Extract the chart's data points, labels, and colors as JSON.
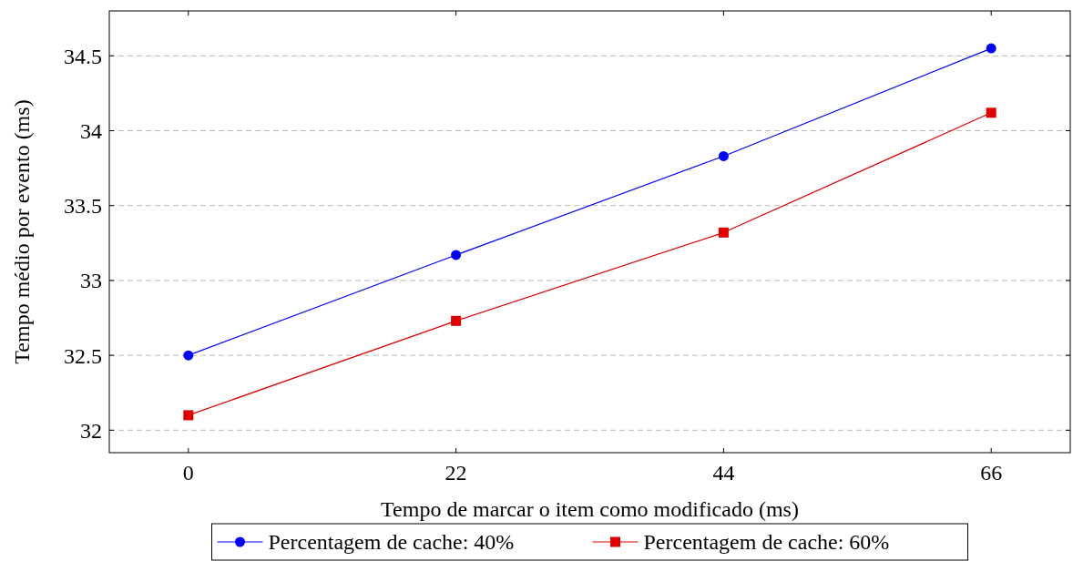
{
  "chart_data": {
    "type": "line",
    "xlabel": "Tempo de marcar o item como modificado (ms)",
    "ylabel": "Tempo médio por evento (ms)",
    "x": [
      0,
      22,
      44,
      66
    ],
    "series": [
      {
        "name": "Percentagem de cache: 40%",
        "color": "#0000ff",
        "marker": "circle",
        "values": [
          32.5,
          33.17,
          33.83,
          34.55
        ]
      },
      {
        "name": "Percentagem de cache: 60%",
        "color": "#e00000",
        "marker": "square",
        "values": [
          32.1,
          32.73,
          33.32,
          34.12
        ]
      }
    ],
    "xlim": [
      -6.5,
      72.5
    ],
    "ylim": [
      31.85,
      34.8
    ],
    "xticks": [
      0,
      22,
      44,
      66
    ],
    "yticks": [
      32,
      32.5,
      33,
      33.5,
      34,
      34.5
    ],
    "grid": "y",
    "legend": "bottom",
    "line_style": "solid"
  }
}
